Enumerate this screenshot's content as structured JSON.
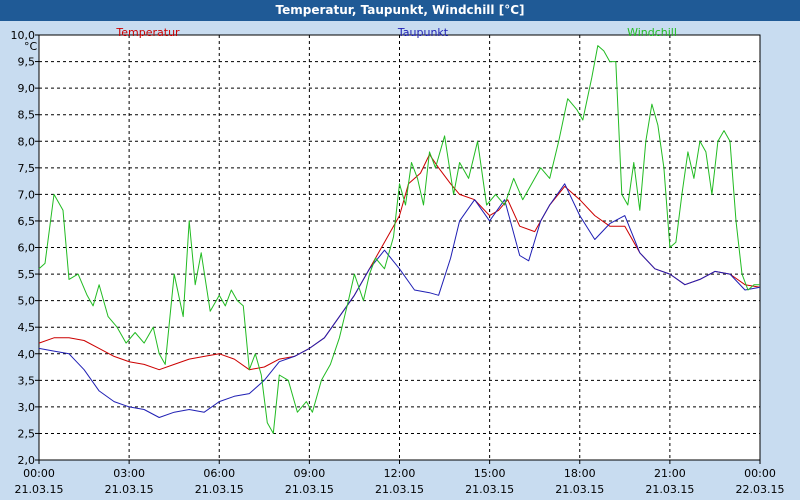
{
  "window": {
    "title": "Temperatur, Taupunkt, Windchill [°C]"
  },
  "chart_data": {
    "type": "line",
    "title": "Temperatur, Taupunkt, Windchill [°C]",
    "ylabel": "°C",
    "ylim": [
      2.0,
      10.0
    ],
    "xlim": [
      0,
      24
    ],
    "grid": true,
    "legend": "top",
    "y_ticks": [
      "2,0",
      "2,5",
      "3,0",
      "3,5",
      "4,0",
      "4,5",
      "5,0",
      "5,5",
      "6,0",
      "6,5",
      "7,0",
      "7,5",
      "8,0",
      "8,5",
      "9,0",
      "9,5",
      "10,0"
    ],
    "x_ticks": [
      {
        "time": "00:00",
        "date": "21.03.15"
      },
      {
        "time": "03:00",
        "date": "21.03.15"
      },
      {
        "time": "06:00",
        "date": "21.03.15"
      },
      {
        "time": "09:00",
        "date": "21.03.15"
      },
      {
        "time": "12:00",
        "date": "21.03.15"
      },
      {
        "time": "15:00",
        "date": "21.03.15"
      },
      {
        "time": "18:00",
        "date": "21.03.15"
      },
      {
        "time": "21:00",
        "date": "21.03.15"
      },
      {
        "time": "00:00",
        "date": "22.03.15"
      }
    ],
    "series": [
      {
        "name": "Temperatur",
        "color": "#cc0000",
        "points": [
          [
            0,
            4.2
          ],
          [
            0.5,
            4.3
          ],
          [
            1,
            4.3
          ],
          [
            1.5,
            4.25
          ],
          [
            2,
            4.1
          ],
          [
            2.5,
            3.95
          ],
          [
            3,
            3.85
          ],
          [
            3.5,
            3.8
          ],
          [
            4,
            3.7
          ],
          [
            4.5,
            3.8
          ],
          [
            5,
            3.9
          ],
          [
            5.5,
            3.95
          ],
          [
            6,
            4.0
          ],
          [
            6.5,
            3.9
          ],
          [
            7,
            3.7
          ],
          [
            7.5,
            3.75
          ],
          [
            8,
            3.9
          ],
          [
            8.5,
            3.95
          ],
          [
            9,
            4.1
          ],
          [
            9.5,
            4.3
          ],
          [
            10,
            4.7
          ],
          [
            10.5,
            5.1
          ],
          [
            11,
            5.6
          ],
          [
            11.5,
            6.1
          ],
          [
            12,
            6.6
          ],
          [
            12.3,
            7.2
          ],
          [
            12.7,
            7.4
          ],
          [
            13,
            7.75
          ],
          [
            13.3,
            7.5
          ],
          [
            13.7,
            7.2
          ],
          [
            14,
            7.0
          ],
          [
            14.5,
            6.9
          ],
          [
            15,
            6.6
          ],
          [
            15.3,
            6.7
          ],
          [
            15.6,
            6.9
          ],
          [
            16,
            6.4
          ],
          [
            16.5,
            6.3
          ],
          [
            17,
            6.8
          ],
          [
            17.5,
            7.15
          ],
          [
            18,
            6.9
          ],
          [
            18.5,
            6.6
          ],
          [
            19,
            6.4
          ],
          [
            19.5,
            6.4
          ],
          [
            20,
            5.9
          ],
          [
            20.5,
            5.6
          ],
          [
            21,
            5.5
          ],
          [
            21.5,
            5.3
          ],
          [
            22,
            5.4
          ],
          [
            22.5,
            5.55
          ],
          [
            23,
            5.5
          ],
          [
            23.5,
            5.3
          ],
          [
            24,
            5.25
          ]
        ]
      },
      {
        "name": "Taupunkt",
        "color": "#1f1fb4",
        "points": [
          [
            0,
            4.1
          ],
          [
            0.5,
            4.05
          ],
          [
            1,
            4.0
          ],
          [
            1.5,
            3.7
          ],
          [
            2,
            3.3
          ],
          [
            2.5,
            3.1
          ],
          [
            3,
            3.0
          ],
          [
            3.5,
            2.95
          ],
          [
            4,
            2.8
          ],
          [
            4.5,
            2.9
          ],
          [
            5,
            2.95
          ],
          [
            5.5,
            2.9
          ],
          [
            6,
            3.1
          ],
          [
            6.5,
            3.2
          ],
          [
            7,
            3.25
          ],
          [
            7.5,
            3.5
          ],
          [
            8,
            3.85
          ],
          [
            8.5,
            3.95
          ],
          [
            9,
            4.1
          ],
          [
            9.5,
            4.3
          ],
          [
            10,
            4.7
          ],
          [
            10.5,
            5.1
          ],
          [
            11,
            5.6
          ],
          [
            11.5,
            5.95
          ],
          [
            12,
            5.6
          ],
          [
            12.5,
            5.2
          ],
          [
            13,
            5.15
          ],
          [
            13.3,
            5.1
          ],
          [
            13.7,
            5.8
          ],
          [
            14,
            6.5
          ],
          [
            14.5,
            6.9
          ],
          [
            15,
            6.5
          ],
          [
            15.5,
            6.9
          ],
          [
            16,
            5.85
          ],
          [
            16.3,
            5.75
          ],
          [
            16.7,
            6.5
          ],
          [
            17,
            6.8
          ],
          [
            17.5,
            7.2
          ],
          [
            18,
            6.6
          ],
          [
            18.5,
            6.15
          ],
          [
            19,
            6.45
          ],
          [
            19.5,
            6.6
          ],
          [
            20,
            5.9
          ],
          [
            20.5,
            5.6
          ],
          [
            21,
            5.5
          ],
          [
            21.5,
            5.3
          ],
          [
            22,
            5.4
          ],
          [
            22.5,
            5.55
          ],
          [
            23,
            5.5
          ],
          [
            23.5,
            5.2
          ],
          [
            24,
            5.25
          ]
        ]
      },
      {
        "name": "Windchill",
        "color": "#22bb22",
        "points": [
          [
            0,
            5.6
          ],
          [
            0.2,
            5.7
          ],
          [
            0.5,
            7.0
          ],
          [
            0.8,
            6.7
          ],
          [
            1,
            5.4
          ],
          [
            1.3,
            5.5
          ],
          [
            1.6,
            5.1
          ],
          [
            1.8,
            4.9
          ],
          [
            2,
            5.3
          ],
          [
            2.3,
            4.7
          ],
          [
            2.6,
            4.5
          ],
          [
            2.9,
            4.2
          ],
          [
            3.2,
            4.4
          ],
          [
            3.5,
            4.2
          ],
          [
            3.8,
            4.5
          ],
          [
            4,
            4.0
          ],
          [
            4.2,
            3.8
          ],
          [
            4.5,
            5.5
          ],
          [
            4.8,
            4.7
          ],
          [
            5,
            6.5
          ],
          [
            5.2,
            5.3
          ],
          [
            5.4,
            5.9
          ],
          [
            5.7,
            4.8
          ],
          [
            6,
            5.1
          ],
          [
            6.2,
            4.9
          ],
          [
            6.4,
            5.2
          ],
          [
            6.6,
            5.0
          ],
          [
            6.8,
            4.9
          ],
          [
            7,
            3.7
          ],
          [
            7.2,
            4.0
          ],
          [
            7.4,
            3.6
          ],
          [
            7.6,
            2.7
          ],
          [
            7.8,
            2.5
          ],
          [
            8,
            3.6
          ],
          [
            8.3,
            3.5
          ],
          [
            8.6,
            2.9
          ],
          [
            8.9,
            3.1
          ],
          [
            9.1,
            2.9
          ],
          [
            9.4,
            3.5
          ],
          [
            9.7,
            3.8
          ],
          [
            10,
            4.3
          ],
          [
            10.3,
            5.0
          ],
          [
            10.5,
            5.5
          ],
          [
            10.8,
            5.0
          ],
          [
            11,
            5.5
          ],
          [
            11.2,
            5.8
          ],
          [
            11.5,
            5.6
          ],
          [
            11.8,
            6.2
          ],
          [
            12,
            7.2
          ],
          [
            12.2,
            6.8
          ],
          [
            12.4,
            7.6
          ],
          [
            12.6,
            7.3
          ],
          [
            12.8,
            6.8
          ],
          [
            13,
            7.8
          ],
          [
            13.2,
            7.5
          ],
          [
            13.5,
            8.1
          ],
          [
            13.8,
            7.0
          ],
          [
            14,
            7.6
          ],
          [
            14.3,
            7.3
          ],
          [
            14.6,
            8.0
          ],
          [
            14.9,
            6.8
          ],
          [
            15.2,
            7.0
          ],
          [
            15.5,
            6.8
          ],
          [
            15.8,
            7.3
          ],
          [
            16.1,
            6.9
          ],
          [
            16.4,
            7.2
          ],
          [
            16.7,
            7.5
          ],
          [
            17,
            7.3
          ],
          [
            17.3,
            8.0
          ],
          [
            17.6,
            8.8
          ],
          [
            17.9,
            8.6
          ],
          [
            18.1,
            8.4
          ],
          [
            18.4,
            9.2
          ],
          [
            18.6,
            9.8
          ],
          [
            18.8,
            9.7
          ],
          [
            19,
            9.5
          ],
          [
            19.2,
            9.5
          ],
          [
            19.4,
            7.0
          ],
          [
            19.6,
            6.8
          ],
          [
            19.8,
            7.6
          ],
          [
            20,
            6.7
          ],
          [
            20.2,
            8.0
          ],
          [
            20.4,
            8.7
          ],
          [
            20.6,
            8.3
          ],
          [
            20.8,
            7.5
          ],
          [
            21,
            6.0
          ],
          [
            21.2,
            6.1
          ],
          [
            21.4,
            7.0
          ],
          [
            21.6,
            7.8
          ],
          [
            21.8,
            7.3
          ],
          [
            22,
            8.0
          ],
          [
            22.2,
            7.8
          ],
          [
            22.4,
            7.0
          ],
          [
            22.6,
            8.0
          ],
          [
            22.8,
            8.2
          ],
          [
            23,
            8.0
          ],
          [
            23.2,
            6.5
          ],
          [
            23.4,
            5.5
          ],
          [
            23.6,
            5.2
          ],
          [
            23.8,
            5.3
          ],
          [
            24,
            5.3
          ]
        ]
      }
    ]
  }
}
